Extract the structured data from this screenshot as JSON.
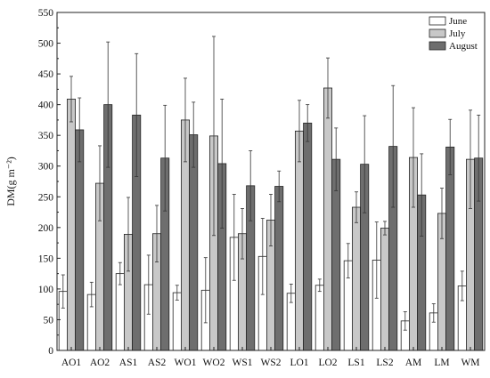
{
  "chart_data": {
    "type": "bar",
    "title": "",
    "xlabel": "",
    "ylabel": "DM(g m⁻²)",
    "ylim": [
      0,
      550
    ],
    "yticks": [
      0,
      50,
      100,
      150,
      200,
      250,
      300,
      350,
      400,
      450,
      500,
      550
    ],
    "grid": false,
    "legend_position": "top-right",
    "categories": [
      "AO1",
      "AO2",
      "AS1",
      "AS2",
      "WO1",
      "WO2",
      "WS1",
      "WS2",
      "LO1",
      "LO2",
      "LS1",
      "LS2",
      "AM",
      "LM",
      "WM"
    ],
    "series": [
      {
        "name": "June",
        "color": "#ffffff",
        "values": [
          96,
          91,
          125,
          107,
          94,
          98,
          184,
          153,
          93,
          106,
          146,
          147,
          48,
          61,
          105
        ],
        "errors": [
          27,
          20,
          18,
          48,
          12,
          53,
          70,
          62,
          15,
          10,
          28,
          62,
          15,
          15,
          24
        ]
      },
      {
        "name": "July",
        "color": "#c8c8c8",
        "values": [
          409,
          272,
          189,
          190,
          375,
          349,
          190,
          212,
          357,
          427,
          233,
          199,
          314,
          223,
          311
        ],
        "errors": [
          37,
          61,
          60,
          46,
          68,
          162,
          41,
          42,
          50,
          49,
          25,
          11,
          81,
          41,
          80
        ]
      },
      {
        "name": "August",
        "color": "#6e6e6e",
        "values": [
          359,
          400,
          383,
          313,
          351,
          304,
          268,
          267,
          370,
          311,
          303,
          332,
          253,
          331,
          313
        ],
        "errors": [
          52,
          102,
          100,
          86,
          53,
          105,
          57,
          25,
          30,
          51,
          79,
          99,
          67,
          45,
          70
        ]
      }
    ]
  }
}
